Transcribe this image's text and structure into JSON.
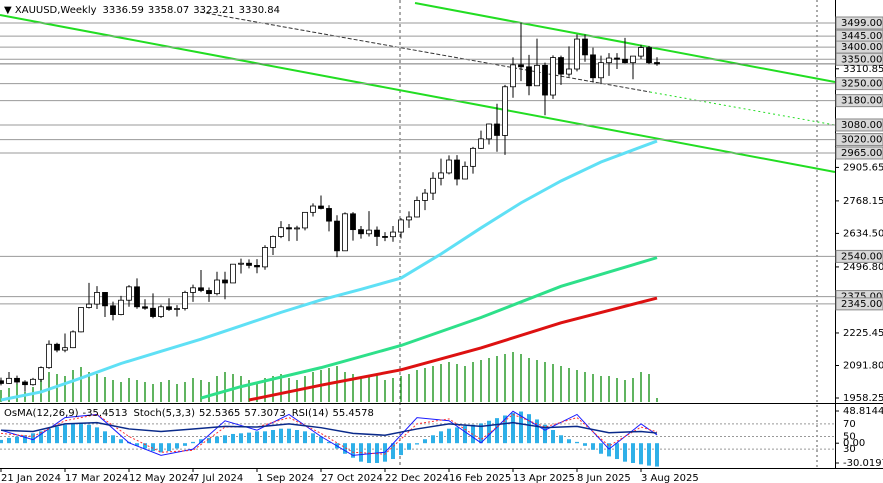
{
  "chart_data": {
    "type": "candlestick",
    "symbol": "XAUUSD,Weekly",
    "up_color": "#ffffff",
    "down_color": "#000000",
    "candles": [
      [
        2029,
        2042,
        2010,
        2018
      ],
      [
        2018,
        2065,
        2016,
        2039
      ],
      [
        2039,
        2050,
        2015,
        2024
      ],
      [
        2024,
        2031,
        1984,
        2013
      ],
      [
        2013,
        2041,
        2009,
        2035
      ],
      [
        2035,
        2088,
        2024,
        2083
      ],
      [
        2083,
        2195,
        2078,
        2179
      ],
      [
        2179,
        2185,
        2146,
        2155
      ],
      [
        2155,
        2223,
        2146,
        2165
      ],
      [
        2165,
        2236,
        2163,
        2230
      ],
      [
        2230,
        2330,
        2228,
        2330
      ],
      [
        2330,
        2431,
        2326,
        2344
      ],
      [
        2344,
        2418,
        2324,
        2392
      ],
      [
        2392,
        2394,
        2291,
        2337
      ],
      [
        2337,
        2354,
        2277,
        2301
      ],
      [
        2301,
        2378,
        2298,
        2360
      ],
      [
        2360,
        2422,
        2333,
        2415
      ],
      [
        2415,
        2450,
        2325,
        2333
      ],
      [
        2333,
        2364,
        2321,
        2327
      ],
      [
        2327,
        2388,
        2286,
        2293
      ],
      [
        2293,
        2342,
        2287,
        2333
      ],
      [
        2333,
        2368,
        2316,
        2322
      ],
      [
        2322,
        2340,
        2293,
        2326
      ],
      [
        2326,
        2399,
        2318,
        2392
      ],
      [
        2392,
        2424,
        2353,
        2411
      ],
      [
        2411,
        2484,
        2393,
        2400
      ],
      [
        2400,
        2412,
        2353,
        2387
      ],
      [
        2387,
        2477,
        2380,
        2443
      ],
      [
        2443,
        2477,
        2364,
        2431
      ],
      [
        2431,
        2509,
        2431,
        2508
      ],
      [
        2508,
        2531,
        2470,
        2512
      ],
      [
        2512,
        2528,
        2491,
        2503
      ],
      [
        2503,
        2529,
        2471,
        2497
      ],
      [
        2497,
        2586,
        2485,
        2577
      ],
      [
        2577,
        2626,
        2546,
        2622
      ],
      [
        2622,
        2685,
        2615,
        2658
      ],
      [
        2658,
        2673,
        2603,
        2653
      ],
      [
        2653,
        2666,
        2604,
        2657
      ],
      [
        2657,
        2722,
        2647,
        2721
      ],
      [
        2721,
        2758,
        2704,
        2747
      ],
      [
        2747,
        2790,
        2733,
        2737
      ],
      [
        2737,
        2750,
        2643,
        2685
      ],
      [
        2685,
        2709,
        2537,
        2563
      ],
      [
        2563,
        2721,
        2563,
        2715
      ],
      [
        2715,
        2722,
        2605,
        2650
      ],
      [
        2650,
        2665,
        2613,
        2633
      ],
      [
        2633,
        2726,
        2622,
        2648
      ],
      [
        2648,
        2663,
        2583,
        2622
      ],
      [
        2622,
        2640,
        2603,
        2621
      ],
      [
        2621,
        2665,
        2600,
        2640
      ],
      [
        2640,
        2697,
        2614,
        2690
      ],
      [
        2690,
        2725,
        2657,
        2702
      ],
      [
        2702,
        2786,
        2700,
        2770
      ],
      [
        2770,
        2817,
        2730,
        2800
      ],
      [
        2800,
        2886,
        2772,
        2861
      ],
      [
        2861,
        2942,
        2832,
        2883
      ],
      [
        2883,
        2955,
        2877,
        2936
      ],
      [
        2936,
        2956,
        2832,
        2858
      ],
      [
        2858,
        2930,
        2857,
        2910
      ],
      [
        2910,
        2990,
        2880,
        2984
      ],
      [
        2984,
        3057,
        2982,
        3023
      ],
      [
        3023,
        3086,
        3000,
        3084
      ],
      [
        3084,
        3167,
        2970,
        3037
      ],
      [
        3037,
        3245,
        2957,
        3237
      ],
      [
        3237,
        3358,
        3192,
        3327
      ],
      [
        3327,
        3500,
        3260,
        3319
      ],
      [
        3319,
        3368,
        3202,
        3241
      ],
      [
        3241,
        3435,
        3240,
        3325
      ],
      [
        3325,
        3336,
        3120,
        3203
      ],
      [
        3203,
        3366,
        3187,
        3357
      ],
      [
        3357,
        3365,
        3245,
        3289
      ],
      [
        3289,
        3403,
        3278,
        3310
      ],
      [
        3310,
        3452,
        3300,
        3433
      ],
      [
        3433,
        3452,
        3340,
        3368
      ],
      [
        3368,
        3398,
        3255,
        3274
      ],
      [
        3274,
        3365,
        3248,
        3336
      ],
      [
        3336,
        3375,
        3282,
        3355
      ],
      [
        3355,
        3375,
        3310,
        3350
      ],
      [
        3350,
        3438,
        3333,
        3336
      ],
      [
        3336,
        3363,
        3268,
        3363
      ],
      [
        3363,
        3409,
        3351,
        3398
      ],
      [
        3398,
        3405,
        3330,
        3336
      ],
      [
        3336.59,
        3358.07,
        3323.21,
        3330.84
      ]
    ],
    "ylim": [
      1937.7,
      3593.5
    ],
    "yticks": [
      {
        "value": 3310.85,
        "label": "3310.85"
      },
      {
        "value": 2905.65,
        "label": "2905.65"
      },
      {
        "value": 2768.15,
        "label": "2768.15"
      },
      {
        "value": 2634.5,
        "label": "2634.50"
      },
      {
        "value": 2496.8,
        "label": "2496.80"
      },
      {
        "value": 2225.45,
        "label": "2225.45"
      },
      {
        "value": 2091.8,
        "label": "2091.80"
      },
      {
        "value": 1958.25,
        "label": "1958.25"
      }
    ],
    "levels": [
      {
        "value": 3499,
        "label": "3499.00"
      },
      {
        "value": 3445,
        "label": "3445.00"
      },
      {
        "value": 3400,
        "label": "3400.00"
      },
      {
        "value": 3350,
        "label": "3350.00"
      },
      {
        "value": 3250,
        "label": "3250.00"
      },
      {
        "value": 3180,
        "label": "3180.00"
      },
      {
        "value": 3080,
        "label": "3080.00"
      },
      {
        "value": 3020,
        "label": "3020.00"
      },
      {
        "value": 2965,
        "label": "2965.00"
      },
      {
        "value": 2540,
        "label": "2540.00"
      },
      {
        "value": 2375,
        "label": "2375.00"
      },
      {
        "value": 2345,
        "label": "2345.00"
      }
    ],
    "xticks": [
      {
        "value": 0,
        "label": "21 Jan 2024"
      },
      {
        "value": 8,
        "label": "17 Mar 2024"
      },
      {
        "value": 16,
        "label": "12 May 2024"
      },
      {
        "value": 24,
        "label": "7 Jul 2024"
      },
      {
        "value": 32,
        "label": "1 Sep 2024"
      },
      {
        "value": 40,
        "label": "27 Oct 2024"
      },
      {
        "value": 48,
        "label": "22 Dec 2024"
      },
      {
        "value": 56,
        "label": "16 Feb 2025"
      },
      {
        "value": 64,
        "label": "13 Apr 2025"
      },
      {
        "value": 72,
        "label": "8 Jun 2025"
      },
      {
        "value": 80,
        "label": "3 Aug 2025"
      }
    ],
    "moving_averages": [
      {
        "color": "#5fe0f5",
        "x": [
          0,
          5,
          10,
          15,
          20,
          25,
          30,
          35,
          40,
          45,
          50,
          55,
          60,
          65,
          70,
          75,
          82
        ],
        "values": [
          1950,
          1983,
          2040,
          2100,
          2150,
          2200,
          2255,
          2310,
          2361,
          2405,
          2451,
          2550,
          2657,
          2760,
          2850,
          2928,
          3014
        ]
      },
      {
        "color": "#2ee08a",
        "x": [
          25,
          30,
          40,
          50,
          60,
          70,
          82
        ],
        "values": [
          1958,
          2005,
          2083,
          2174,
          2289,
          2417,
          2535
        ]
      },
      {
        "color": "#dd1111",
        "x": [
          31,
          40,
          50,
          60,
          70,
          82
        ],
        "values": [
          1950,
          2011,
          2074,
          2164,
          2267,
          2369
        ]
      }
    ],
    "volume_color": "#2a9a2a",
    "volumes": [
      12,
      14,
      18,
      10,
      15,
      22,
      30,
      28,
      26,
      32,
      35,
      30,
      28,
      25,
      22,
      20,
      24,
      22,
      20,
      18,
      20,
      22,
      18,
      20,
      24,
      22,
      20,
      26,
      30,
      28,
      26,
      22,
      20,
      24,
      26,
      28,
      24,
      22,
      26,
      30,
      32,
      34,
      36,
      30,
      28,
      24,
      26,
      28,
      22,
      24,
      26,
      28,
      32,
      34,
      36,
      38,
      40,
      38,
      36,
      40,
      42,
      44,
      46,
      48,
      50,
      48,
      44,
      42,
      40,
      38,
      36,
      34,
      32,
      30,
      28,
      26,
      26,
      24,
      22,
      24,
      30,
      28,
      4
    ],
    "oscillator": {
      "osma": {
        "name": "OsMA(12,26,9)",
        "color": "#2fb0e8",
        "values": [
          5,
          8,
          10,
          12,
          15,
          18,
          22,
          25,
          28,
          30,
          30,
          28,
          24,
          18,
          12,
          6,
          2,
          -4,
          -8,
          -12,
          -14,
          -12,
          -8,
          -4,
          2,
          6,
          8,
          10,
          12,
          14,
          15,
          16,
          18,
          18,
          20,
          22,
          22,
          20,
          18,
          15,
          10,
          2,
          -8,
          -16,
          -22,
          -28,
          -30,
          -30,
          -28,
          -24,
          -18,
          -10,
          -2,
          6,
          12,
          18,
          22,
          24,
          26,
          28,
          30,
          34,
          38,
          42,
          46,
          48,
          44,
          36,
          28,
          20,
          12,
          6,
          2,
          -4,
          -10,
          -16,
          -20,
          -24,
          -28,
          -30,
          -32,
          -34,
          -35.4513
        ]
      },
      "osma_ylim": [
        -37.6,
        57.9
      ],
      "osma_yticks": [
        48.8144,
        {
          "value": 0,
          "label": "0.00"
        },
        -30.0197
      ],
      "stoch": {
        "name": "Stoch(5,3,3)",
        "x": [
          0,
          4,
          8,
          12,
          16,
          20,
          24,
          28,
          32,
          36,
          40,
          44,
          48,
          52,
          56,
          60,
          64,
          68,
          72,
          76,
          80,
          82
        ],
        "main": {
          "color": "#1a1aff",
          "values": [
            60,
            45,
            80,
            85,
            40,
            20,
            30,
            75,
            60,
            85,
            50,
            20,
            25,
            80,
            75,
            40,
            90,
            60,
            85,
            30,
            70,
            52.5365
          ]
        },
        "signal": {
          "color": "#ff3030",
          "values": [
            55,
            50,
            75,
            85,
            50,
            25,
            28,
            65,
            65,
            80,
            55,
            25,
            22,
            70,
            78,
            45,
            85,
            65,
            80,
            35,
            65,
            57.3073
          ]
        }
      },
      "rsi": {
        "name": "RSI(14)",
        "color": "#0a2a8a",
        "x": [
          0,
          4,
          8,
          12,
          16,
          20,
          24,
          28,
          32,
          36,
          40,
          44,
          48,
          52,
          56,
          60,
          64,
          68,
          72,
          76,
          80,
          82
        ],
        "values": [
          60,
          58,
          70,
          72,
          62,
          58,
          62,
          66,
          65,
          70,
          64,
          55,
          52,
          62,
          70,
          66,
          72,
          64,
          66,
          56,
          58,
          55.4578
        ]
      },
      "ylim": [
        0,
        100
      ],
      "yticks": [
        70,
        50,
        30
      ]
    }
  }
}
